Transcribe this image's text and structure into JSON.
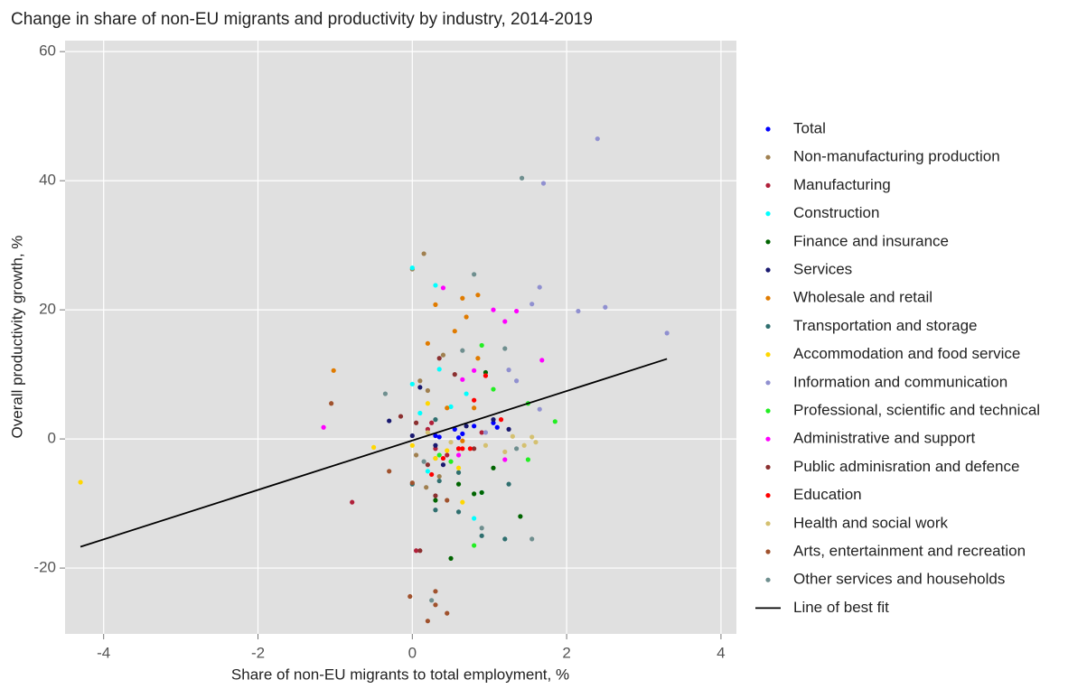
{
  "chart_data": {
    "type": "scatter",
    "title": "Change in share of non-EU migrants and productivity by industry, 2014-2019",
    "x_label": "Share of non-EU migrants to total employment, %",
    "y_label": "Overall productivity growth, %",
    "xlim": [
      -4.5,
      4.2
    ],
    "xticks": [
      -4,
      -2,
      0,
      2,
      4
    ],
    "ylim": [
      -30.2,
      61.7
    ],
    "yticks": [
      -20,
      0,
      20,
      40,
      60
    ],
    "grid": true,
    "legend": "right",
    "series": [
      {
        "name": "Total",
        "color": "#0000ff",
        "x": [
          0.35,
          0.55,
          0.65,
          0.8,
          1.05,
          0.3,
          0.6,
          1.1
        ],
        "values": [
          0.3,
          1.5,
          0.8,
          2.0,
          2.5,
          0.5,
          0.2,
          1.8
        ]
      },
      {
        "name": "Non-manufacturing production",
        "color": "#a08050",
        "x": [
          0.15,
          0.0,
          0.1,
          0.2,
          0.05,
          0.3,
          0.4,
          0.35,
          0.18
        ],
        "values": [
          28.7,
          26.3,
          9.0,
          7.5,
          -2.5,
          -3,
          13,
          -5.8,
          -7.5
        ]
      },
      {
        "name": "Manufacturing",
        "color": "#b0203a",
        "x": [
          0.2,
          0.3,
          0.45,
          0.6,
          -0.78,
          0.05,
          0.25,
          0.9
        ],
        "values": [
          1.5,
          -1.5,
          -2.5,
          -1.5,
          -9.8,
          -17.3,
          2.5,
          1.0
        ]
      },
      {
        "name": "Construction",
        "color": "#00ffff",
        "x": [
          0.0,
          0.3,
          0.0,
          0.1,
          0.35,
          0.7,
          0.9,
          0.8,
          0.2,
          0.5
        ],
        "values": [
          26.5,
          23.8,
          8.5,
          4.0,
          10.8,
          7.0,
          -8.3,
          -12.3,
          -5.0,
          5.0
        ]
      },
      {
        "name": "Finance and insurance",
        "color": "#006400",
        "x": [
          0.5,
          1.4,
          0.9,
          0.95,
          1.05,
          0.8,
          0.6,
          0.3
        ],
        "values": [
          -18.5,
          -12,
          -8.3,
          10.3,
          -4.5,
          -8.5,
          -7,
          -9.5
        ]
      },
      {
        "name": "Services",
        "color": "#191970",
        "x": [
          -0.3,
          0.1,
          0.4,
          0.7,
          1.25,
          0.0,
          1.05,
          0.3
        ],
        "values": [
          2.8,
          8,
          -4,
          2.0,
          1.5,
          0.5,
          3.0,
          -1
        ]
      },
      {
        "name": "Wholesale and retail",
        "color": "#e07b00",
        "x": [
          -1.02,
          0.55,
          0.7,
          0.65,
          0.85,
          0.3,
          0.2,
          0.85,
          0.95,
          0.45,
          0.65,
          0.8
        ],
        "values": [
          10.6,
          16.7,
          18.9,
          21.8,
          22.3,
          20.8,
          14.8,
          12.5,
          9.8,
          4.8,
          -0.3,
          4.8
        ]
      },
      {
        "name": "Transportation and storage",
        "color": "#2f6f6f",
        "x": [
          0.6,
          0.3,
          0.9,
          1.2,
          0.6,
          0.35,
          0.0,
          0.3,
          1.25
        ],
        "values": [
          -11.3,
          -11,
          -15,
          -15.5,
          -5.2,
          -6.5,
          -7.0,
          3.0,
          -7
        ]
      },
      {
        "name": "Accommodation and food service",
        "color": "#ffd700",
        "x": [
          -4.3,
          -0.5,
          0.0,
          0.3,
          0.6,
          0.2,
          0.45,
          0.65
        ],
        "values": [
          -6.7,
          -1.3,
          -1.0,
          -3.0,
          -4.5,
          5.5,
          -1.8,
          -9.8
        ]
      },
      {
        "name": "Information and communication",
        "color": "#9090d0",
        "x": [
          2.4,
          1.7,
          1.65,
          1.55,
          2.15,
          2.5,
          3.3,
          1.25,
          1.35,
          1.65,
          0.95
        ],
        "values": [
          46.5,
          39.6,
          23.5,
          20.9,
          19.8,
          20.4,
          16.4,
          10.7,
          9.0,
          4.6,
          1.0
        ]
      },
      {
        "name": "Professional, scientific and technical",
        "color": "#22ee22",
        "x": [
          1.85,
          1.5,
          1.05,
          0.9,
          0.8,
          1.5,
          0.5,
          0.35
        ],
        "values": [
          2.7,
          5.5,
          7.7,
          14.5,
          -16.5,
          -3.2,
          -3.5,
          -2.5
        ]
      },
      {
        "name": "Administrative and support",
        "color": "#ff00ff",
        "x": [
          -1.15,
          0.4,
          1.05,
          1.2,
          1.35,
          1.68,
          0.8,
          0.65,
          1.2,
          0.6
        ],
        "values": [
          1.8,
          23.4,
          20.0,
          18.2,
          19.8,
          12.2,
          10.6,
          9.2,
          -3.2,
          -2.5
        ]
      },
      {
        "name": "Public adminisration and defence",
        "color": "#8b3030",
        "x": [
          0.1,
          0.05,
          -0.15,
          0.35,
          0.55,
          0.3,
          0.8,
          0.2
        ],
        "values": [
          -17.3,
          2.5,
          3.5,
          12.5,
          10,
          -8.8,
          -1.5,
          -4.0
        ]
      },
      {
        "name": "Education",
        "color": "#ff0000",
        "x": [
          0.8,
          0.75,
          0.6,
          0.4,
          0.25,
          1.15,
          0.95,
          0.65
        ],
        "values": [
          6.0,
          -1.5,
          -1.5,
          -3,
          -5.5,
          3,
          9.8,
          -1.5
        ]
      },
      {
        "name": "Health and social work",
        "color": "#d4c070",
        "x": [
          1.55,
          1.45,
          1.6,
          1.3,
          0.2,
          0.5,
          0.95,
          1.2
        ],
        "values": [
          0.3,
          -1.0,
          -0.5,
          0.4,
          1.0,
          -0.5,
          -1.0,
          -2.0
        ]
      },
      {
        "name": "Arts, entertainment and recreation",
        "color": "#a0522d",
        "x": [
          -0.03,
          0.3,
          0.2,
          0.45,
          0.3,
          -1.05,
          -0.3,
          0.0,
          0.45
        ],
        "values": [
          -24.4,
          -23.6,
          -28.2,
          -27.0,
          -25.7,
          5.5,
          -5,
          -6.8,
          -9.5
        ]
      },
      {
        "name": "Other services and households",
        "color": "#6f8f8f",
        "x": [
          1.42,
          0.8,
          1.2,
          0.65,
          0.25,
          1.55,
          -0.35,
          1.35,
          0.9,
          0.15
        ],
        "values": [
          40.4,
          25.5,
          14.0,
          13.7,
          -25,
          -15.5,
          7.0,
          -1.5,
          -13.8,
          -3.5
        ]
      }
    ],
    "fit": {
      "name": "Line of best fit",
      "color": "#000000",
      "x": [
        -4.3,
        3.3
      ],
      "values": [
        -16.7,
        12.4
      ]
    }
  }
}
